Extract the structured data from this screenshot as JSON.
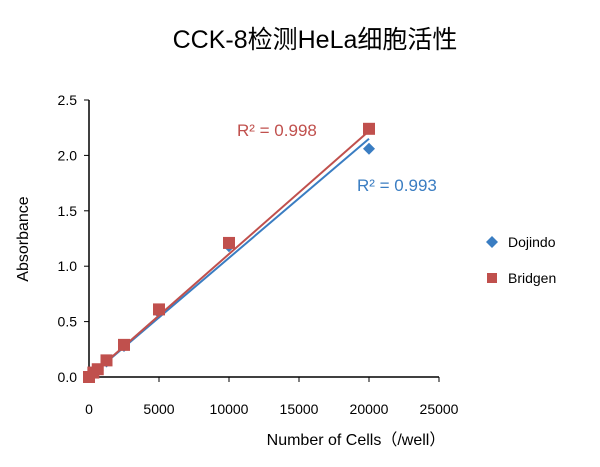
{
  "chart_data": {
    "type": "scatter",
    "title": "CCK-8检测HeLa细胞活性",
    "xlabel": "Number of Cells（/well）",
    "ylabel": "Absorbance",
    "xlim": [
      0,
      25000
    ],
    "ylim": [
      0,
      2.5
    ],
    "xticks": [
      "0",
      "5000",
      "10000",
      "15000",
      "20000",
      "25000"
    ],
    "yticks": [
      "0.0",
      "0.5",
      "1.0",
      "1.5",
      "2.0",
      "2.5"
    ],
    "grid": false,
    "legend_position": "right",
    "series": [
      {
        "name": "Dojindo",
        "color": "#3a7dc2",
        "marker": "diamond",
        "x": [
          0,
          312,
          625,
          1250,
          2500,
          5000,
          10000,
          20000
        ],
        "y": [
          0,
          0.03,
          0.06,
          0.14,
          0.28,
          0.58,
          1.18,
          2.06
        ],
        "trendline": {
          "r2_label": "R² = 0.993",
          "y_at_0": 0.0,
          "y_at_20000": 2.15
        }
      },
      {
        "name": "Bridgen",
        "color": "#c0504d",
        "marker": "square",
        "x": [
          0,
          312,
          625,
          1250,
          2500,
          5000,
          10000,
          20000
        ],
        "y": [
          0,
          0.04,
          0.07,
          0.15,
          0.29,
          0.61,
          1.21,
          2.24
        ],
        "trendline": {
          "r2_label": "R² = 0.998",
          "y_at_0": 0.0,
          "y_at_20000": 2.22
        }
      }
    ]
  }
}
